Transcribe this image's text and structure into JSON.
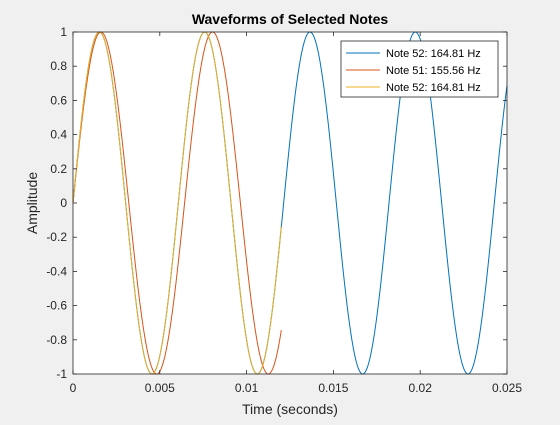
{
  "chart_data": {
    "type": "line",
    "title": "Waveforms of Selected Notes",
    "xlabel": "Time (seconds)",
    "ylabel": "Amplitude",
    "xlim": [
      0,
      0.025
    ],
    "ylim": [
      -1,
      1
    ],
    "xticks": [
      0,
      0.005,
      0.01,
      0.015,
      0.02,
      0.025
    ],
    "xtick_labels": [
      "0",
      "0.005",
      "0.01",
      "0.015",
      "0.02",
      "0.025"
    ],
    "yticks": [
      1,
      0.8,
      0.6,
      0.4,
      0.2,
      0,
      -0.2,
      -0.4,
      -0.6,
      -0.8,
      -1
    ],
    "ytick_labels": [
      "1",
      "0.8",
      "0.6",
      "0.4",
      "0.2",
      "0",
      "-0.2",
      "-0.4",
      "-0.6",
      "-0.8",
      "-1"
    ],
    "grid": false,
    "legend_position": "top-right",
    "series": [
      {
        "name": "Note 52: 164.81 Hz",
        "frequency_hz": 164.81,
        "t_start": 0,
        "t_end": 0.025,
        "color": "#0072BD"
      },
      {
        "name": "Note 51: 155.56 Hz",
        "frequency_hz": 155.56,
        "t_start": 0,
        "t_end": 0.012,
        "color": "#D95319"
      },
      {
        "name": "Note 52: 164.81 Hz",
        "frequency_hz": 164.81,
        "t_start": 0,
        "t_end": 0.012,
        "color": "#EDB120"
      }
    ]
  }
}
